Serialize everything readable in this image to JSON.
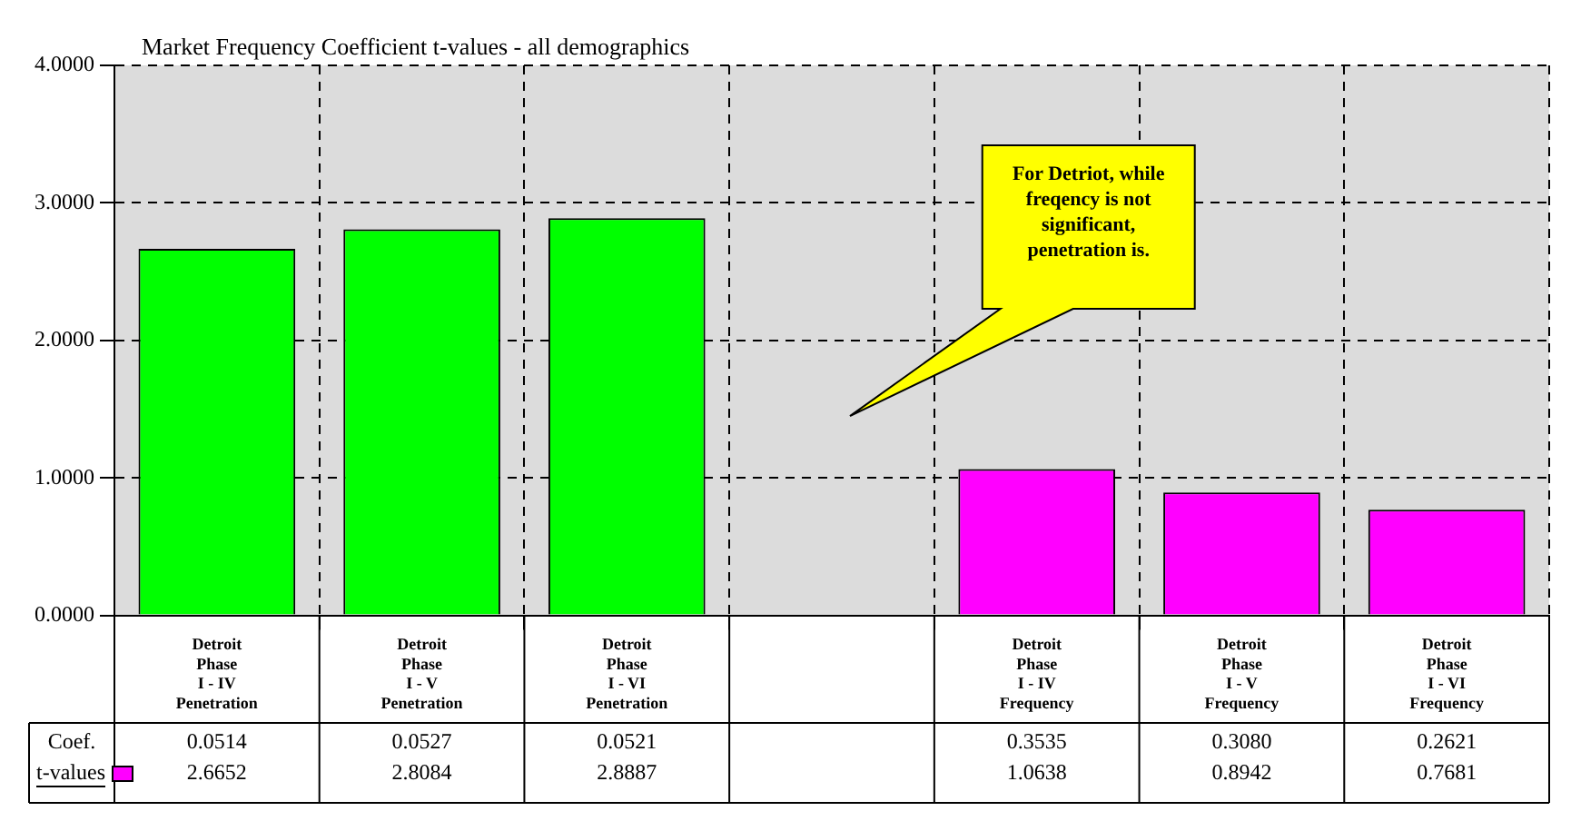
{
  "chart_data": {
    "type": "bar",
    "title": "Market Frequency Coefficient t-values - all demographics",
    "categories": [
      "Detroit\nPhase\nI - IV\nPenetration",
      "Detroit\nPhase\nI - V\nPenetration",
      "Detroit\nPhase\nI - VI\nPenetration",
      null,
      "Detroit\nPhase\nI - IV\nFrequency",
      "Detroit\nPhase\nI - V\nFrequency",
      "Detroit\nPhase\nI - VI\nFrequency"
    ],
    "series": [
      {
        "name": "t-values",
        "color": "#ff00ff",
        "values": [
          2.6652,
          2.8084,
          2.8887,
          null,
          1.0638,
          0.8942,
          0.7681
        ],
        "colors": [
          "#00ff00",
          "#00ff00",
          "#00ff00",
          "#ffffff",
          "#ff00ff",
          "#ff00ff",
          "#ff00ff"
        ]
      }
    ],
    "ylim": [
      0,
      4
    ],
    "yticks": [
      {
        "value": 0,
        "label": "0.0000"
      },
      {
        "value": 1,
        "label": "1.0000"
      },
      {
        "value": 2,
        "label": "2.0000"
      },
      {
        "value": 3,
        "label": "3.0000"
      },
      {
        "value": 4,
        "label": "4.0000"
      }
    ],
    "grid": true,
    "legend": "bottom left",
    "data_labels": true,
    "annotations": [
      "For Detriot, while freqency is not significant, penetration is.",
      "Coef.",
      "0.0514",
      "0.0527",
      "0.0521",
      "0.3535",
      "0.3080",
      "0.2621"
    ]
  }
}
